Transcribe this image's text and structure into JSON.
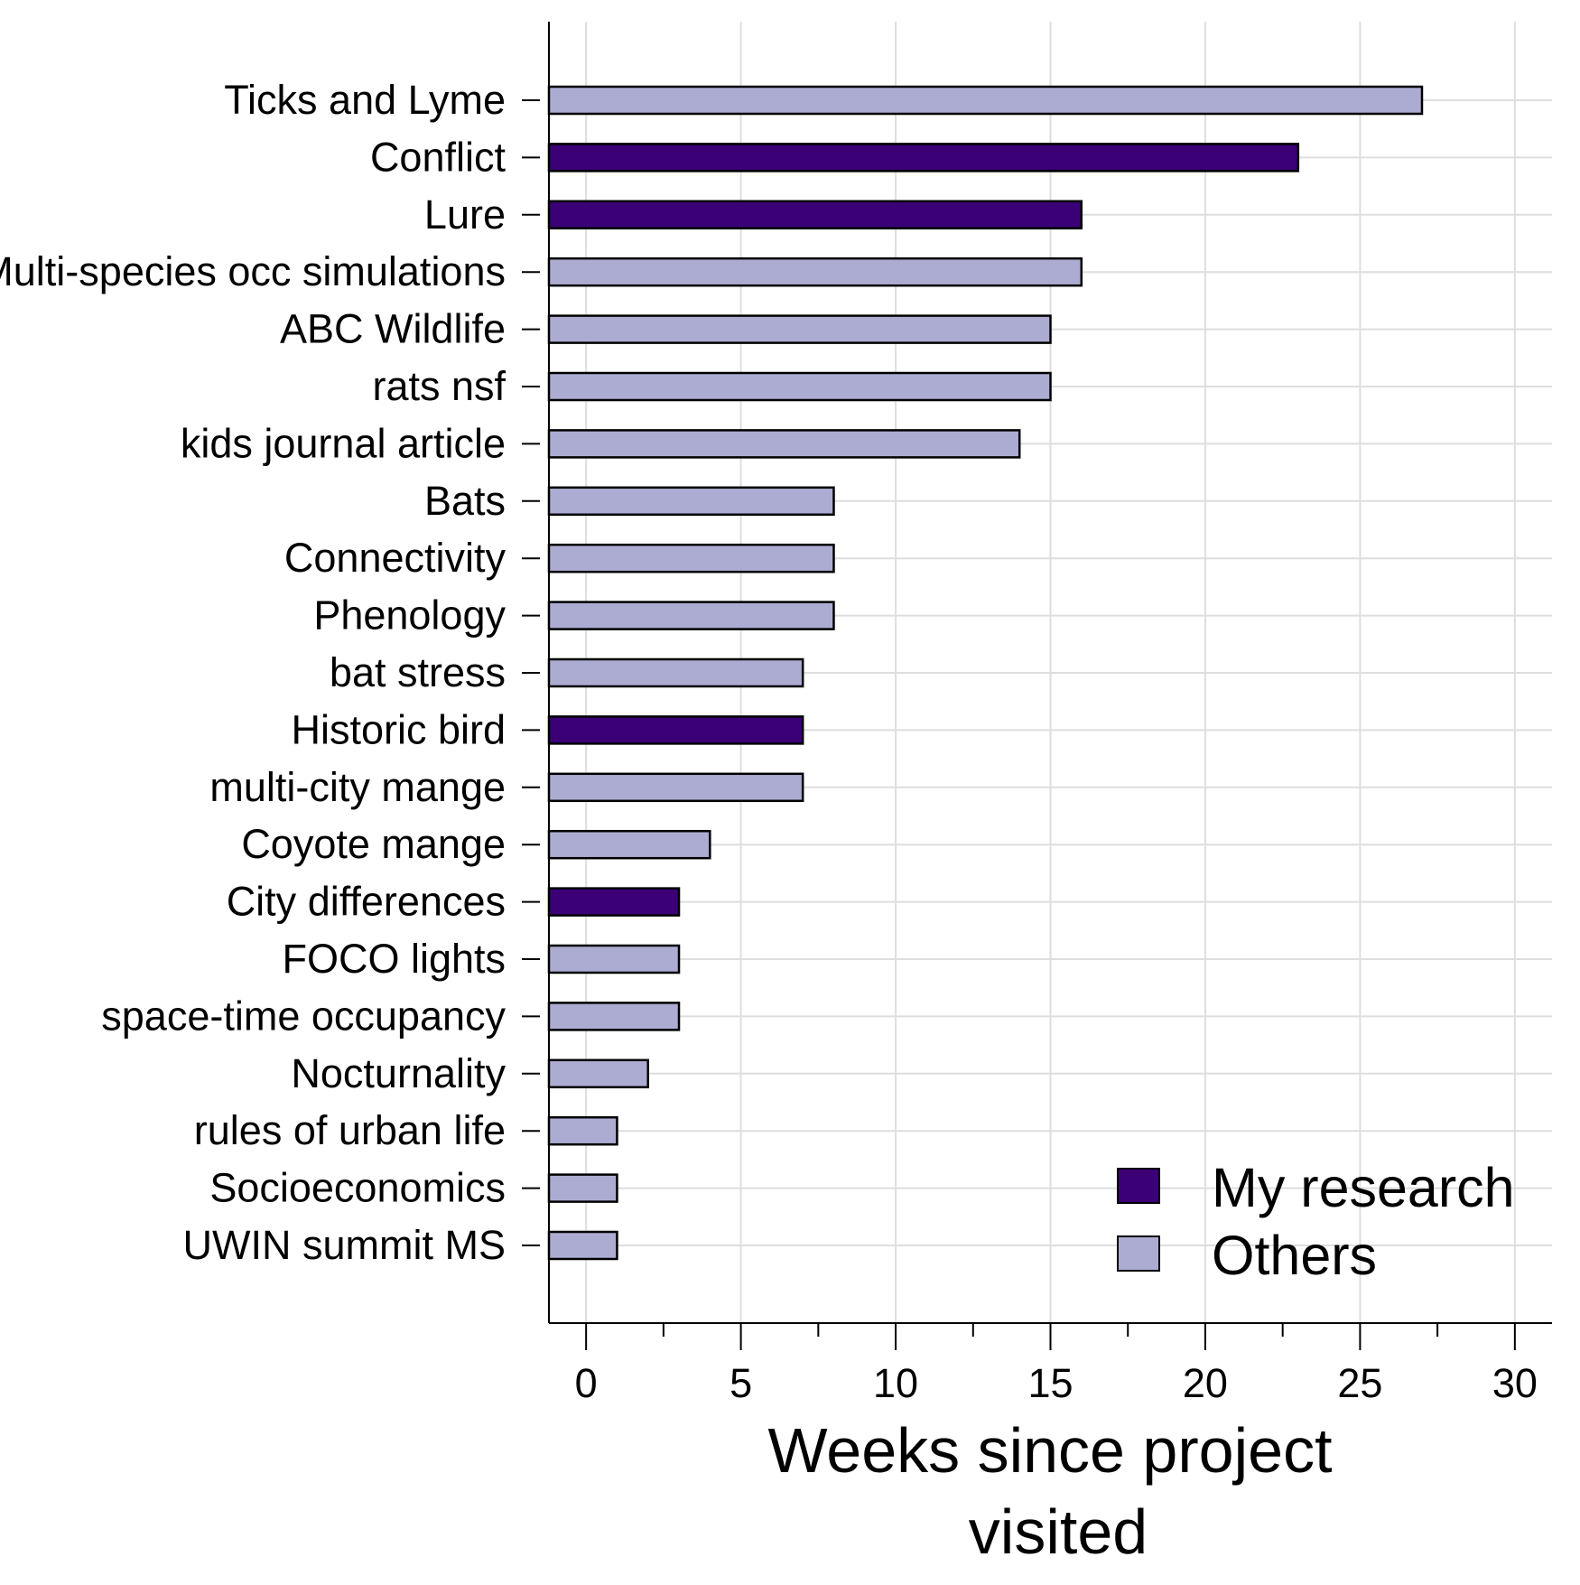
{
  "chart_data": {
    "type": "bar",
    "orientation": "horizontal",
    "title": "",
    "xlabel": "Weeks since project visited",
    "xlabel_lines": [
      "Weeks since project",
      "visited"
    ],
    "ylabel": "",
    "xlim": [
      -1.2,
      31.2
    ],
    "x_ticks": [
      0,
      5,
      10,
      15,
      20,
      25,
      30
    ],
    "x_minor_ticks": [
      2.5,
      7.5,
      12.5,
      17.5,
      22.5,
      27.5
    ],
    "grid": true,
    "legend_position": "bottom-right",
    "categories": [
      "Ticks and Lyme",
      "Conflict",
      "Lure",
      "Multi-species occ simulations",
      "ABC Wildlife",
      "rats nsf",
      "kids journal article",
      "Bats",
      "Connectivity",
      "Phenology",
      "bat stress",
      "Historic bird",
      "multi-city mange",
      "Coyote mange",
      "City differences",
      "FOCO lights",
      "space-time occupancy",
      "Nocturnality",
      "rules of urban life",
      "Socioeconomics",
      "UWIN summit MS"
    ],
    "values": [
      27,
      23,
      16,
      16,
      15,
      15,
      14,
      8,
      8,
      8,
      7,
      7,
      7,
      4,
      3,
      3,
      3,
      2,
      1,
      1,
      1
    ],
    "groups": [
      "Others",
      "My research",
      "My research",
      "Others",
      "Others",
      "Others",
      "Others",
      "Others",
      "Others",
      "Others",
      "Others",
      "My research",
      "Others",
      "Others",
      "My research",
      "Others",
      "Others",
      "Others",
      "Others",
      "Others",
      "Others"
    ],
    "legend": [
      {
        "name": "My research",
        "color": "#3b0075"
      },
      {
        "name": "Others",
        "color": "#acacd3"
      }
    ]
  }
}
